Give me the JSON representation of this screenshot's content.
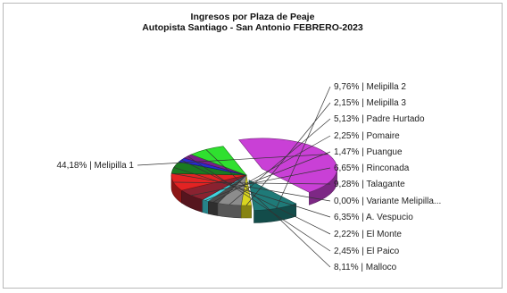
{
  "chart_data": {
    "type": "pie",
    "title": "Ingresos por Plaza de Peaje",
    "subtitle": "Autopista Santiago - San Antonio FEBRERO-2023",
    "slices": [
      {
        "name": "Melipilla 1",
        "value": 44.18,
        "label": "44,18% | Melipilla 1",
        "color": "#c940d6"
      },
      {
        "name": "Melipilla 2",
        "value": 9.76,
        "label": "9,76% | Melipilla 2",
        "color": "#1f7a78"
      },
      {
        "name": "Melipilla 3",
        "value": 2.15,
        "label": "2,15% | Melipilla 3",
        "color": "#d9d51f"
      },
      {
        "name": "Padre Hurtado",
        "value": 5.13,
        "label": "5,13% | Padre Hurtado",
        "color": "#8c8c8c"
      },
      {
        "name": "Pomaire",
        "value": 2.25,
        "label": "2,25% | Pomaire",
        "color": "#4c4c4c"
      },
      {
        "name": "Puangue",
        "value": 1.47,
        "label": "1,47% | Puangue",
        "color": "#3fd3dd"
      },
      {
        "name": "Rinconada",
        "value": 6.65,
        "label": "6,65% | Rinconada",
        "color": "#8a2230"
      },
      {
        "name": "Talagante",
        "value": 9.28,
        "label": "9,28% | Talagante",
        "color": "#e32323"
      },
      {
        "name": "Variante Melipilla",
        "value": 0.0,
        "label": "0,00% | Variante Melipilla...",
        "color": "#a9a9a9"
      },
      {
        "name": "A. Vespucio",
        "value": 6.35,
        "label": "6,35% | A. Vespucio",
        "color": "#1a7a22"
      },
      {
        "name": "El Monte",
        "value": 2.22,
        "label": "2,22% | El Monte",
        "color": "#2a2ad0"
      },
      {
        "name": "El Paico",
        "value": 2.45,
        "label": "2,45% | El Paico",
        "color": "#7a1f8a"
      },
      {
        "name": "Malloco",
        "value": 8.11,
        "label": "8,11% | Malloco",
        "color": "#2fe02f"
      }
    ],
    "legend": "none"
  }
}
